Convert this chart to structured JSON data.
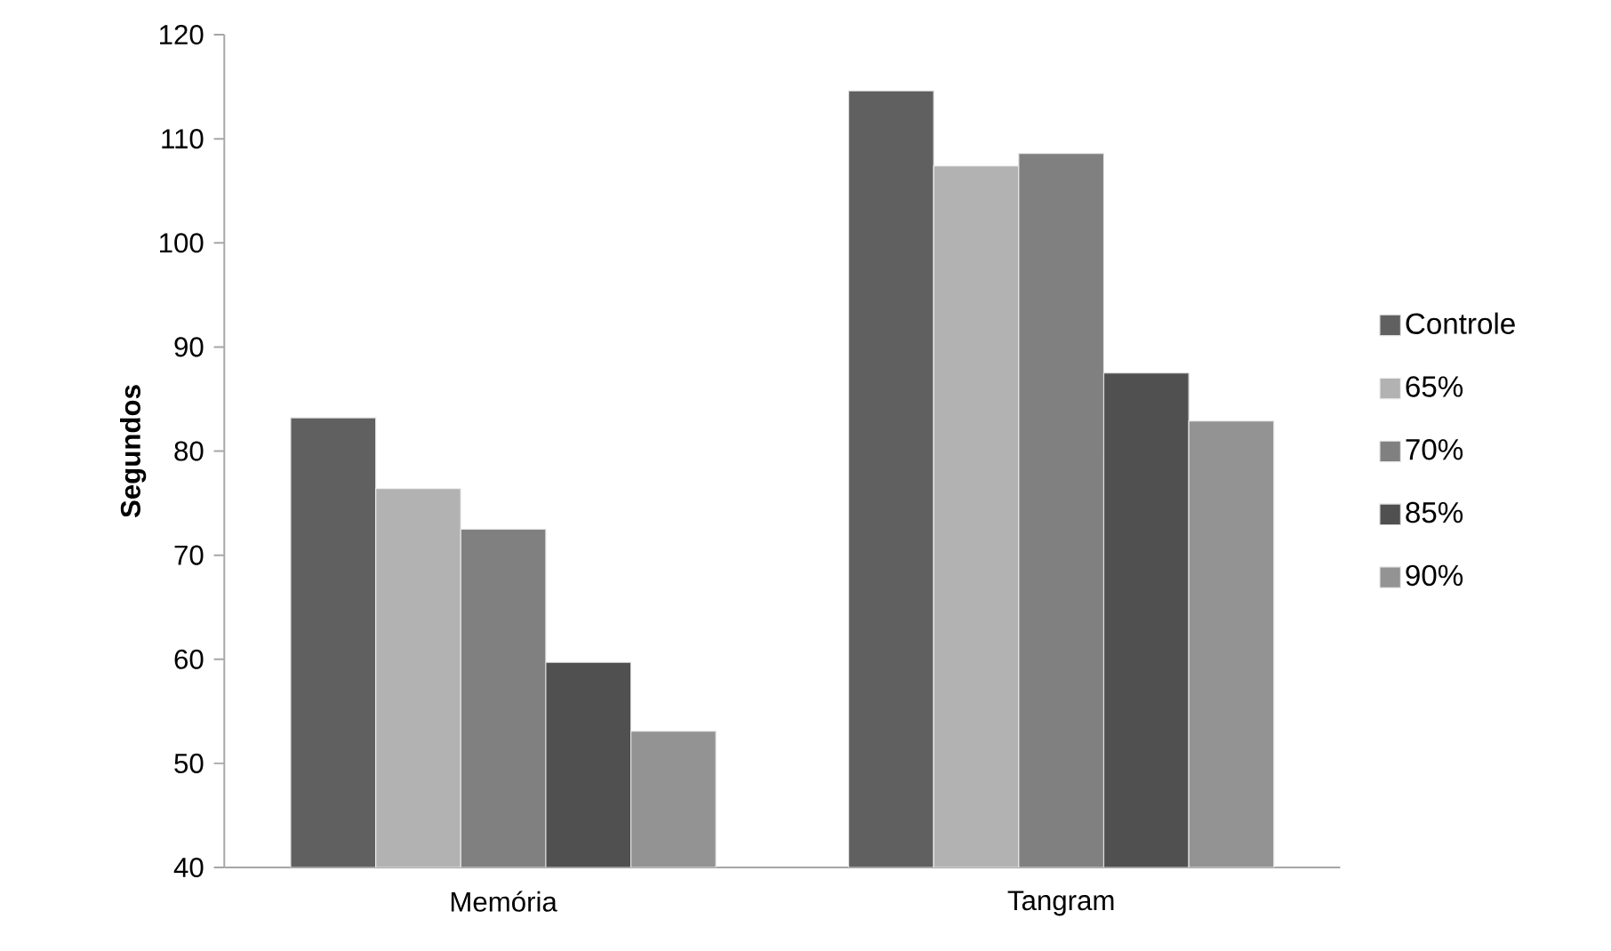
{
  "chart_data": {
    "type": "bar",
    "ylabel": "Segundos",
    "categories": [
      "Memória",
      "Tangram"
    ],
    "series": [
      {
        "name": "Controle",
        "color": "#606060",
        "values": [
          83.2,
          114.6
        ]
      },
      {
        "name": "65%",
        "color": "#b2b2b2",
        "values": [
          76.4,
          107.4
        ]
      },
      {
        "name": "70%",
        "color": "#808080",
        "values": [
          72.5,
          108.6
        ]
      },
      {
        "name": "85%",
        "color": "#505050",
        "values": [
          59.7,
          87.5
        ]
      },
      {
        "name": "90%",
        "color": "#939393",
        "values": [
          53.1,
          82.9
        ]
      }
    ],
    "ylim": [
      40,
      120
    ],
    "yticks": [
      40,
      50,
      60,
      70,
      80,
      90,
      100,
      110,
      120
    ],
    "grid": false,
    "legend": "right"
  }
}
